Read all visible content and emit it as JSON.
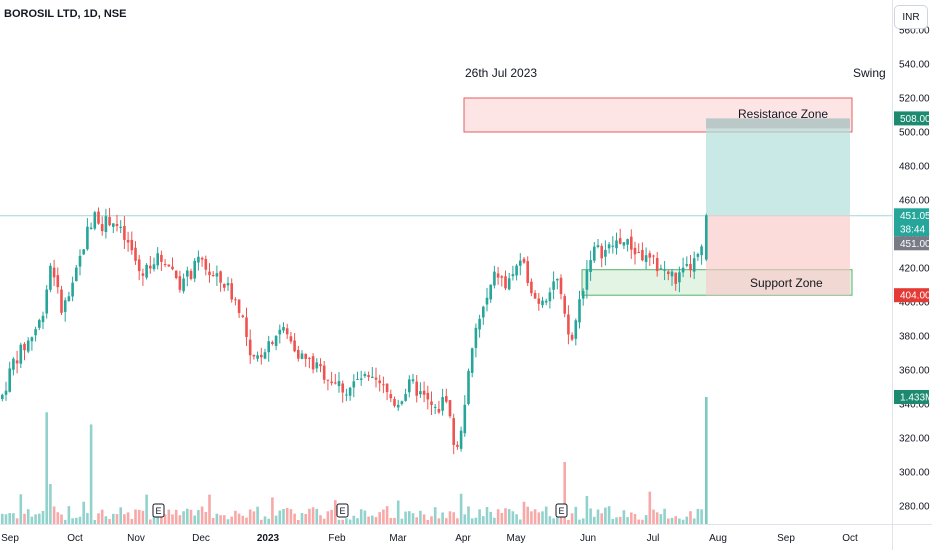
{
  "header": {
    "symbol_title": "BOROSIL LTD, 1D, NSE",
    "currency": "INR"
  },
  "annotations": {
    "date_label": "26th Jul 2023",
    "swing_label": "Swing",
    "resistance_label": "Resistance Zone",
    "support_label": "Support Zone"
  },
  "chart_data": {
    "type": "candlestick",
    "price_axis": {
      "ticks": [
        "280.00",
        "300.00",
        "320.00",
        "340.00",
        "360.00",
        "380.00",
        "400.00",
        "420.00",
        "440.00",
        "460.00",
        "480.00",
        "500.00",
        "520.00",
        "540.00",
        "560.00"
      ],
      "ylim": [
        270,
        565
      ]
    },
    "time_axis": {
      "ticks": [
        "Sep",
        "Oct",
        "Nov",
        "Dec",
        "2023",
        "Feb",
        "Mar",
        "Apr",
        "May",
        "Jun",
        "Jul",
        "Aug",
        "Sep",
        "Oct"
      ]
    },
    "price_labels": {
      "target": "508.00",
      "last": "451.05",
      "countdown": "38:44",
      "prev_close": "451.00",
      "stop": "404.00",
      "volume": "1.433M"
    },
    "levels": {
      "target": 508,
      "entry": 451,
      "stop": 404,
      "resistance_zone": [
        500,
        520
      ],
      "support_zone": [
        404,
        419
      ]
    },
    "earnings_markers": [
      "E",
      "E",
      "E"
    ],
    "colors": {
      "up": "#26a69a",
      "down": "#ef5350",
      "resistance_fill": "#fde5e6",
      "resistance_border": "#e06060",
      "support_fill": "#e3f3e4",
      "support_border": "#55b36a",
      "target_fill": "#b2dfdb",
      "stop_fill": "#f9c9c8"
    }
  }
}
